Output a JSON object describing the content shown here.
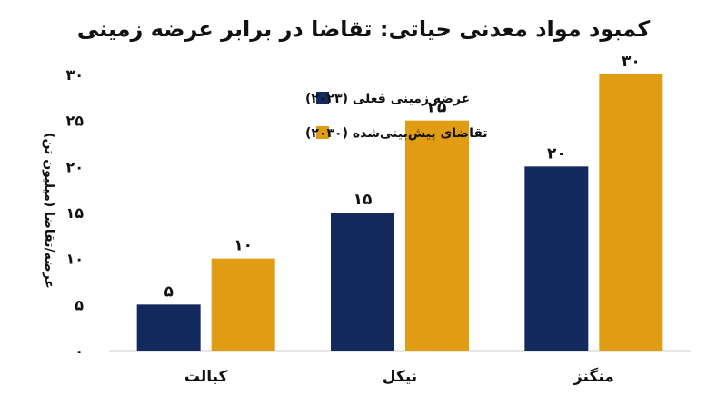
{
  "chart_data": {
    "type": "bar",
    "title": "کمبود مواد معدنی حیاتی: تقاضا در برابر عرضه زمینی",
    "ylabel": "عرضه/تقاضا (میلیون تن)",
    "xlabel": "",
    "categories": [
      "کبالت",
      "نیکل",
      "منگنز"
    ],
    "series": [
      {
        "name": "عرضه زمینی فعلی (۲۰۲۳)",
        "color": "#142a5c",
        "values": [
          5,
          15,
          20
        ],
        "labels": [
          "۵",
          "۱۵",
          "۲۰"
        ]
      },
      {
        "name": "تقاضای پیش‌بینی‌شده (۲۰۳۰)",
        "color": "#e09c12",
        "values": [
          10,
          25,
          30
        ],
        "labels": [
          "۱۰",
          "۲۵",
          "۳۰"
        ]
      }
    ],
    "ylim": [
      0,
      30
    ],
    "yticks": [
      0,
      5,
      10,
      15,
      20,
      25,
      30
    ],
    "yticklabels": [
      "۰",
      "۵",
      "۱۰",
      "۱۵",
      "۲۰",
      "۲۵",
      "۳۰"
    ],
    "grid": false,
    "legend_position": "top-left"
  }
}
